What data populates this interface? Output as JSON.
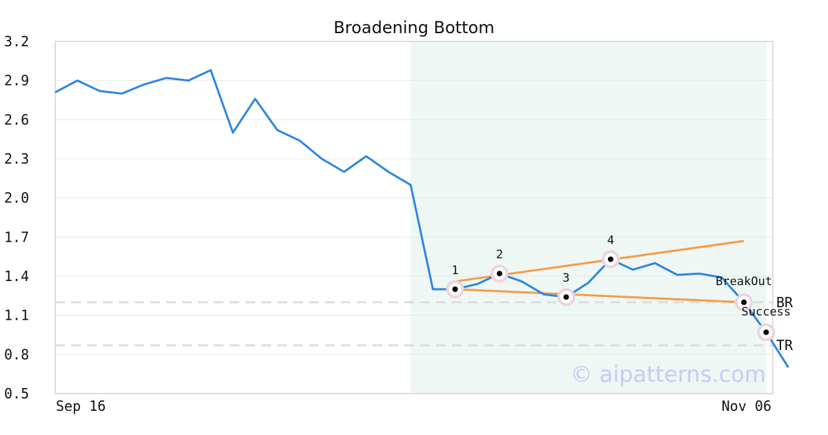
{
  "chart_data": {
    "type": "line",
    "title": "Broadening Bottom",
    "xlabel": "",
    "ylabel": "",
    "ylim": [
      0.5,
      3.2
    ],
    "y_ticks": [
      "3.2",
      "2.9",
      "2.6",
      "2.3",
      "2.0",
      "1.7",
      "1.4",
      "1.1",
      "0.8",
      "0.5"
    ],
    "x_ticks": [
      "Sep 16",
      "Nov 06"
    ],
    "grid": "horizontal",
    "colors": {
      "price": "#2e86de",
      "trendline": "#f39c4a",
      "highlight": "#eef7f3",
      "refline": "#dddddd",
      "marker_ring": "#ecd5de"
    },
    "series": [
      {
        "values": [
          2.81,
          2.9,
          2.82,
          2.8,
          2.87,
          2.92,
          2.9,
          2.98,
          2.5,
          2.76,
          2.52,
          2.44,
          2.3,
          2.2,
          2.32,
          2.2,
          2.1,
          1.3,
          1.3,
          1.34,
          1.42,
          1.36,
          1.26,
          1.24,
          1.35,
          1.53,
          1.45,
          1.5,
          1.41,
          1.42,
          1.39,
          1.2,
          0.97,
          0.7
        ]
      }
    ],
    "highlight_range": [
      16,
      32
    ],
    "trendlines": [
      {
        "from": [
          18,
          1.36
        ],
        "to": [
          31,
          1.67
        ]
      },
      {
        "from": [
          18,
          1.3
        ],
        "to": [
          31,
          1.2
        ]
      }
    ],
    "reference_lines": [
      {
        "label": "BR",
        "value": 1.2
      },
      {
        "label": "TR",
        "value": 0.87
      }
    ],
    "points": [
      {
        "label": "1",
        "x": 18,
        "y": 1.3
      },
      {
        "label": "2",
        "x": 20,
        "y": 1.42
      },
      {
        "label": "3",
        "x": 23,
        "y": 1.24
      },
      {
        "label": "4",
        "x": 25,
        "y": 1.53
      },
      {
        "label": "BreakOut",
        "x": 31,
        "y": 1.2
      },
      {
        "label": "Success",
        "x": 32,
        "y": 0.97
      }
    ],
    "watermark": "© aipatterns.com"
  }
}
